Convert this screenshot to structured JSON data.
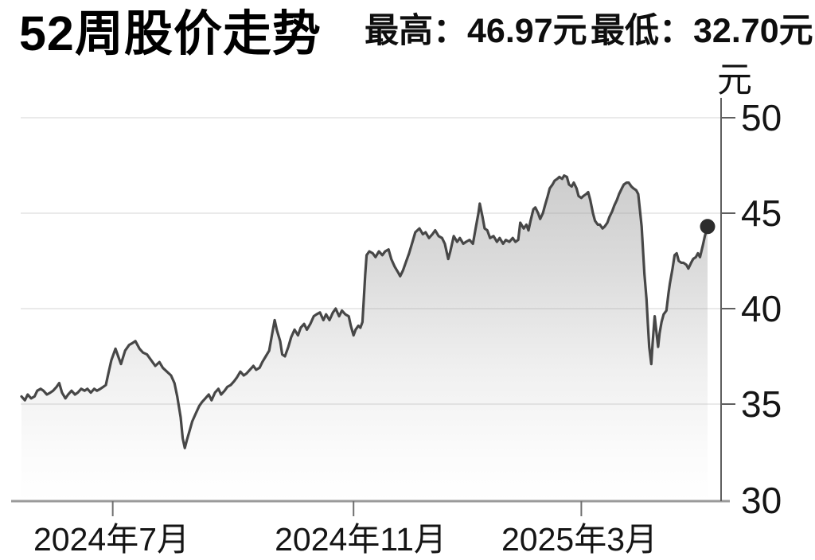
{
  "header": {
    "title": "52周股价走势",
    "high_text": "最高：46.97元",
    "low_text": "最低：32.70元"
  },
  "chart_data": {
    "type": "area",
    "title": "52周股价走势",
    "unit_label": "元",
    "high_value": 46.97,
    "low_value": 32.7,
    "last_value": 44.3,
    "grid": true,
    "legend": "none",
    "y_axis": {
      "min": 30,
      "max": 50,
      "tick_values": [
        50,
        45,
        40,
        35,
        30
      ],
      "tick_labels": [
        "50",
        "45",
        "40",
        "35",
        "30"
      ]
    },
    "x_axis": {
      "tick_labels": [
        "2024年7月",
        "2024年11月",
        "2025年3月"
      ],
      "tick_t": [
        0.133,
        0.484,
        0.816
      ]
    },
    "points_format": "[t across 52-week window 0..1, price in 元]",
    "points": [
      [
        0.0,
        35.4
      ],
      [
        0.005,
        35.2
      ],
      [
        0.009,
        35.5
      ],
      [
        0.014,
        35.3
      ],
      [
        0.019,
        35.4
      ],
      [
        0.023,
        35.7
      ],
      [
        0.028,
        35.8
      ],
      [
        0.032,
        35.7
      ],
      [
        0.037,
        35.5
      ],
      [
        0.042,
        35.6
      ],
      [
        0.046,
        35.7
      ],
      [
        0.051,
        35.9
      ],
      [
        0.055,
        36.1
      ],
      [
        0.059,
        35.6
      ],
      [
        0.064,
        35.3
      ],
      [
        0.068,
        35.5
      ],
      [
        0.073,
        35.7
      ],
      [
        0.078,
        35.5
      ],
      [
        0.082,
        35.6
      ],
      [
        0.087,
        35.8
      ],
      [
        0.092,
        35.7
      ],
      [
        0.096,
        35.8
      ],
      [
        0.101,
        35.6
      ],
      [
        0.106,
        35.8
      ],
      [
        0.11,
        35.7
      ],
      [
        0.115,
        35.8
      ],
      [
        0.119,
        35.9
      ],
      [
        0.123,
        36.0
      ],
      [
        0.126,
        36.5
      ],
      [
        0.131,
        37.3
      ],
      [
        0.137,
        37.9
      ],
      [
        0.142,
        37.4
      ],
      [
        0.145,
        37.1
      ],
      [
        0.151,
        37.8
      ],
      [
        0.157,
        38.1
      ],
      [
        0.162,
        38.2
      ],
      [
        0.166,
        38.3
      ],
      [
        0.172,
        37.9
      ],
      [
        0.177,
        37.7
      ],
      [
        0.183,
        37.6
      ],
      [
        0.189,
        37.3
      ],
      [
        0.195,
        37.0
      ],
      [
        0.201,
        37.2
      ],
      [
        0.206,
        36.9
      ],
      [
        0.212,
        36.7
      ],
      [
        0.218,
        36.5
      ],
      [
        0.223,
        36.1
      ],
      [
        0.227,
        35.4
      ],
      [
        0.232,
        34.3
      ],
      [
        0.235,
        33.2
      ],
      [
        0.238,
        32.7
      ],
      [
        0.241,
        33.1
      ],
      [
        0.245,
        33.6
      ],
      [
        0.249,
        34.1
      ],
      [
        0.254,
        34.5
      ],
      [
        0.259,
        34.9
      ],
      [
        0.263,
        35.1
      ],
      [
        0.268,
        35.3
      ],
      [
        0.273,
        35.5
      ],
      [
        0.277,
        35.2
      ],
      [
        0.282,
        35.6
      ],
      [
        0.287,
        35.8
      ],
      [
        0.291,
        35.5
      ],
      [
        0.296,
        35.7
      ],
      [
        0.3,
        35.9
      ],
      [
        0.305,
        36.0
      ],
      [
        0.31,
        36.2
      ],
      [
        0.314,
        36.4
      ],
      [
        0.319,
        36.7
      ],
      [
        0.324,
        36.5
      ],
      [
        0.328,
        36.6
      ],
      [
        0.333,
        36.8
      ],
      [
        0.338,
        37.0
      ],
      [
        0.342,
        36.8
      ],
      [
        0.347,
        36.9
      ],
      [
        0.351,
        37.2
      ],
      [
        0.356,
        37.5
      ],
      [
        0.361,
        37.8
      ],
      [
        0.365,
        38.6
      ],
      [
        0.369,
        39.4
      ],
      [
        0.372,
        38.9
      ],
      [
        0.377,
        38.3
      ],
      [
        0.38,
        37.6
      ],
      [
        0.384,
        37.5
      ],
      [
        0.389,
        38.0
      ],
      [
        0.393,
        38.5
      ],
      [
        0.398,
        38.9
      ],
      [
        0.403,
        38.6
      ],
      [
        0.407,
        39.0
      ],
      [
        0.412,
        39.2
      ],
      [
        0.416,
        38.9
      ],
      [
        0.421,
        39.2
      ],
      [
        0.426,
        39.6
      ],
      [
        0.43,
        39.7
      ],
      [
        0.435,
        39.8
      ],
      [
        0.44,
        39.4
      ],
      [
        0.444,
        39.7
      ],
      [
        0.449,
        39.4
      ],
      [
        0.454,
        39.8
      ],
      [
        0.458,
        40.0
      ],
      [
        0.463,
        39.6
      ],
      [
        0.467,
        39.9
      ],
      [
        0.472,
        39.7
      ],
      [
        0.477,
        39.6
      ],
      [
        0.48,
        39.1
      ],
      [
        0.484,
        38.6
      ],
      [
        0.487,
        38.9
      ],
      [
        0.491,
        39.1
      ],
      [
        0.494,
        39.0
      ],
      [
        0.497,
        39.3
      ],
      [
        0.499,
        40.5
      ],
      [
        0.501,
        41.8
      ],
      [
        0.503,
        42.8
      ],
      [
        0.507,
        43.0
      ],
      [
        0.512,
        42.9
      ],
      [
        0.516,
        42.7
      ],
      [
        0.521,
        43.0
      ],
      [
        0.526,
        42.8
      ],
      [
        0.53,
        43.0
      ],
      [
        0.535,
        43.1
      ],
      [
        0.539,
        42.6
      ],
      [
        0.544,
        42.2
      ],
      [
        0.549,
        41.9
      ],
      [
        0.552,
        41.7
      ],
      [
        0.556,
        42.0
      ],
      [
        0.56,
        42.4
      ],
      [
        0.565,
        42.9
      ],
      [
        0.57,
        43.5
      ],
      [
        0.574,
        44.0
      ],
      [
        0.58,
        44.2
      ],
      [
        0.585,
        43.9
      ],
      [
        0.589,
        44.0
      ],
      [
        0.594,
        43.7
      ],
      [
        0.599,
        43.9
      ],
      [
        0.603,
        44.1
      ],
      [
        0.608,
        43.8
      ],
      [
        0.613,
        43.7
      ],
      [
        0.617,
        43.4
      ],
      [
        0.622,
        42.6
      ],
      [
        0.625,
        43.0
      ],
      [
        0.63,
        43.8
      ],
      [
        0.635,
        43.5
      ],
      [
        0.639,
        43.7
      ],
      [
        0.644,
        43.4
      ],
      [
        0.648,
        43.5
      ],
      [
        0.653,
        43.6
      ],
      [
        0.658,
        43.4
      ],
      [
        0.662,
        44.2
      ],
      [
        0.666,
        45.0
      ],
      [
        0.668,
        45.5
      ],
      [
        0.672,
        44.8
      ],
      [
        0.675,
        44.2
      ],
      [
        0.679,
        44.1
      ],
      [
        0.683,
        43.7
      ],
      [
        0.688,
        43.8
      ],
      [
        0.693,
        43.5
      ],
      [
        0.697,
        43.7
      ],
      [
        0.702,
        43.4
      ],
      [
        0.706,
        43.6
      ],
      [
        0.711,
        43.5
      ],
      [
        0.716,
        43.7
      ],
      [
        0.72,
        43.5
      ],
      [
        0.724,
        43.6
      ],
      [
        0.727,
        44.5
      ],
      [
        0.732,
        44.2
      ],
      [
        0.736,
        44.4
      ],
      [
        0.739,
        44.1
      ],
      [
        0.742,
        44.6
      ],
      [
        0.746,
        45.2
      ],
      [
        0.749,
        45.3
      ],
      [
        0.753,
        45.0
      ],
      [
        0.756,
        44.7
      ],
      [
        0.76,
        45.0
      ],
      [
        0.763,
        45.4
      ],
      [
        0.767,
        45.9
      ],
      [
        0.77,
        46.3
      ],
      [
        0.774,
        46.5
      ],
      [
        0.777,
        46.7
      ],
      [
        0.781,
        46.8
      ],
      [
        0.784,
        46.9
      ],
      [
        0.788,
        46.8
      ],
      [
        0.791,
        46.97
      ],
      [
        0.795,
        46.9
      ],
      [
        0.798,
        46.5
      ],
      [
        0.802,
        46.4
      ],
      [
        0.805,
        46.6
      ],
      [
        0.809,
        46.3
      ],
      [
        0.812,
        45.9
      ],
      [
        0.816,
        45.8
      ],
      [
        0.819,
        45.9
      ],
      [
        0.823,
        46.0
      ],
      [
        0.826,
        46.1
      ],
      [
        0.829,
        45.7
      ],
      [
        0.833,
        45.0
      ],
      [
        0.836,
        44.6
      ],
      [
        0.84,
        44.4
      ],
      [
        0.843,
        44.4
      ],
      [
        0.847,
        44.2
      ],
      [
        0.85,
        44.3
      ],
      [
        0.854,
        44.5
      ],
      [
        0.857,
        44.8
      ],
      [
        0.861,
        45.1
      ],
      [
        0.864,
        45.4
      ],
      [
        0.868,
        45.7
      ],
      [
        0.871,
        46.0
      ],
      [
        0.875,
        46.3
      ],
      [
        0.878,
        46.5
      ],
      [
        0.882,
        46.6
      ],
      [
        0.885,
        46.6
      ],
      [
        0.889,
        46.4
      ],
      [
        0.892,
        46.3
      ],
      [
        0.896,
        46.2
      ],
      [
        0.899,
        46.0
      ],
      [
        0.901,
        45.3
      ],
      [
        0.904,
        44.3
      ],
      [
        0.906,
        43.0
      ],
      [
        0.908,
        41.8
      ],
      [
        0.911,
        40.5
      ],
      [
        0.913,
        39.2
      ],
      [
        0.915,
        38.0
      ],
      [
        0.918,
        37.1
      ],
      [
        0.92,
        38.2
      ],
      [
        0.922,
        39.2
      ],
      [
        0.923,
        39.6
      ],
      [
        0.926,
        38.6
      ],
      [
        0.928,
        38.0
      ],
      [
        0.93,
        38.7
      ],
      [
        0.933,
        39.3
      ],
      [
        0.936,
        39.7
      ],
      [
        0.94,
        39.9
      ],
      [
        0.943,
        40.8
      ],
      [
        0.945,
        41.3
      ],
      [
        0.949,
        42.1
      ],
      [
        0.952,
        42.8
      ],
      [
        0.955,
        42.9
      ],
      [
        0.958,
        42.5
      ],
      [
        0.962,
        42.4
      ],
      [
        0.965,
        42.4
      ],
      [
        0.969,
        42.3
      ],
      [
        0.972,
        42.1
      ],
      [
        0.976,
        42.4
      ],
      [
        0.979,
        42.6
      ],
      [
        0.983,
        42.7
      ],
      [
        0.986,
        42.9
      ],
      [
        0.989,
        42.7
      ],
      [
        0.993,
        43.3
      ],
      [
        0.996,
        43.8
      ],
      [
        1.0,
        44.3
      ]
    ]
  },
  "colors": {
    "line": "#474747",
    "dot": "#2c2c2c",
    "area_top": "#9a9a9a",
    "grid": "#eaeaea",
    "axis": "#5f5f5f",
    "x_axis_line": "#9a9a9a",
    "tick": "#6f6f6f",
    "text": "#111111"
  }
}
